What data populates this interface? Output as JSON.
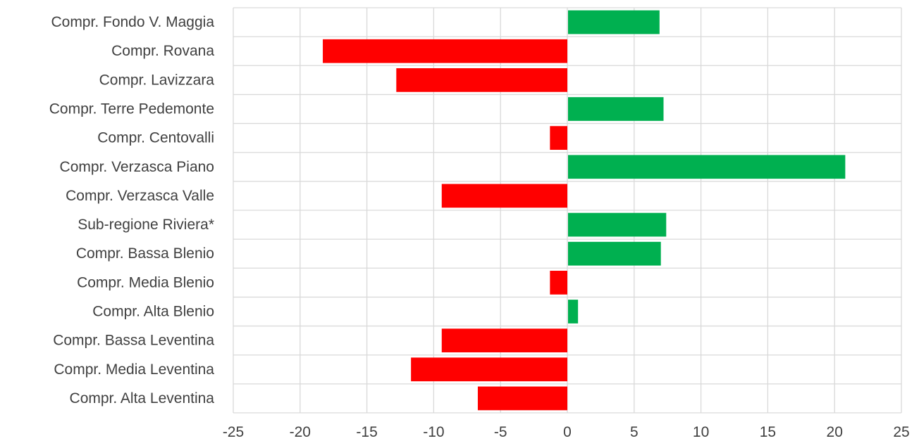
{
  "chart_data": {
    "type": "bar",
    "orientation": "horizontal",
    "categories": [
      "Compr. Fondo V. Maggia",
      "Compr. Rovana",
      "Compr. Lavizzara",
      "Compr. Terre Pedemonte",
      "Compr. Centovalli",
      "Compr. Verzasca Piano",
      "Compr. Verzasca Valle",
      "Sub-regione Riviera*",
      "Compr. Bassa Blenio",
      "Compr. Media Blenio",
      "Compr. Alta Blenio",
      "Compr. Bassa Leventina",
      "Compr. Media Leventina",
      "Compr. Alta Leventina"
    ],
    "values": [
      6.9,
      -18.3,
      -12.8,
      7.2,
      -1.3,
      20.8,
      -9.4,
      7.4,
      7.0,
      -1.3,
      0.8,
      -9.4,
      -11.7,
      -6.7
    ],
    "xlim": [
      -25,
      25
    ],
    "xticks": [
      "-25",
      "-20",
      "-15",
      "-10",
      "-5",
      "0",
      "5",
      "10",
      "15",
      "20",
      "25"
    ],
    "xtick_values": [
      -25,
      -20,
      -15,
      -10,
      -5,
      0,
      5,
      10,
      15,
      20,
      25
    ],
    "grid": "vertical and horizontal",
    "colors": {
      "positive": "#00b050",
      "negative": "#ff0000",
      "grid": "#d9d9d9",
      "text": "#404040"
    },
    "title": "",
    "xlabel": "",
    "ylabel": ""
  }
}
